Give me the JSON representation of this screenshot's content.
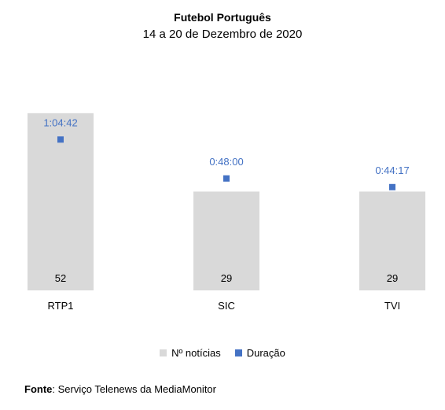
{
  "chart_data": {
    "type": "bar",
    "title": "Futebol Português",
    "subtitle": "14 a 20 de Dezembro de 2020",
    "categories": [
      "RTP1",
      "SIC",
      "TVI"
    ],
    "series": [
      {
        "name": "Nº notícias",
        "type": "bar",
        "color": "#D9D9D9",
        "values": [
          52,
          29,
          29
        ]
      },
      {
        "name": "Duração",
        "type": "scatter",
        "color": "#4472C4",
        "values": [
          "1:04:42",
          "0:48:00",
          "0:44:17"
        ],
        "seconds": [
          3882,
          2880,
          2657
        ]
      }
    ],
    "legend_position": "bottom",
    "grid": false
  },
  "source": {
    "key": "Fonte",
    "value": "Serviço Telenews da MediaMonitor"
  }
}
